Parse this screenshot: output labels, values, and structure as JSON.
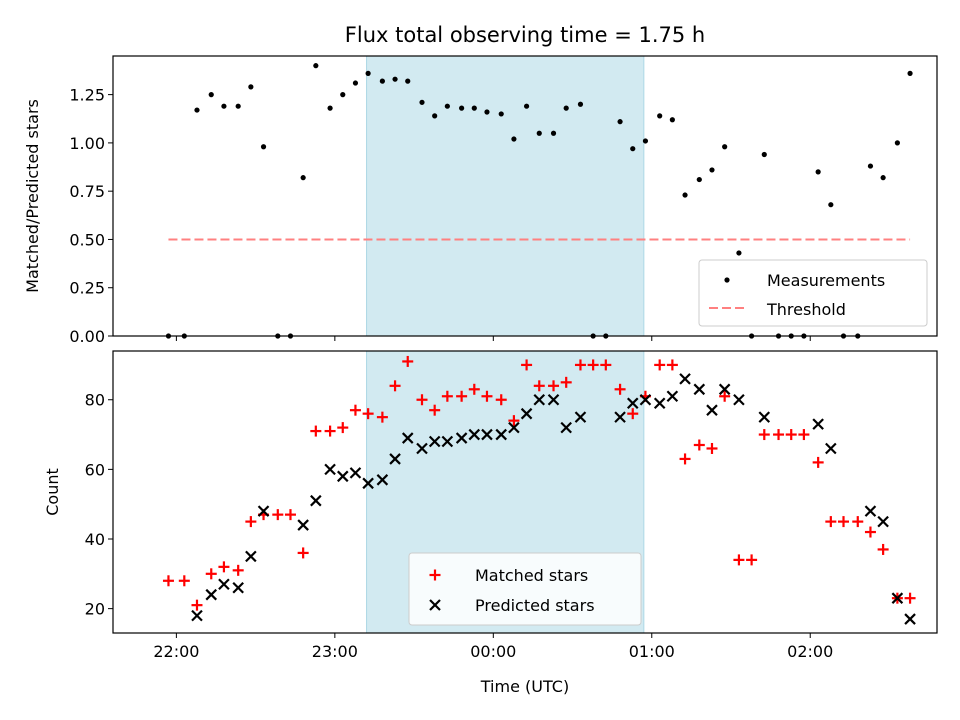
{
  "chart_data": [
    {
      "type": "scatter",
      "panel": "top",
      "title": "Flux total observing time = 1.75 h",
      "xlabel": "",
      "ylabel": "Matched/Predicted stars",
      "ylim": [
        0,
        1.45
      ],
      "yticks": [
        0,
        0.25,
        0.5,
        0.75,
        1.0,
        1.25
      ],
      "ytick_labels": [
        "0.00",
        "0.25",
        "0.50",
        "0.75",
        "1.00",
        "1.25"
      ],
      "shaded_span_hours": [
        23.2,
        24.95
      ],
      "legend_position": "lower right",
      "series": [
        {
          "name": "Measurements",
          "marker": "dot",
          "color": "#000000",
          "x": [
            21.95,
            22.05,
            22.13,
            22.22,
            22.3,
            22.39,
            22.47,
            22.55,
            22.64,
            22.72,
            22.8,
            22.88,
            22.97,
            23.05,
            23.13,
            23.21,
            23.3,
            23.38,
            23.46,
            23.55,
            23.63,
            23.71,
            23.8,
            23.88,
            23.96,
            24.05,
            24.13,
            24.21,
            24.29,
            24.38,
            24.46,
            24.55,
            24.63,
            24.71,
            24.8,
            24.88,
            24.96,
            25.05,
            25.13,
            25.21,
            25.3,
            25.38,
            25.46,
            25.55,
            25.63,
            25.71,
            25.8,
            25.88,
            25.96,
            26.05,
            26.13,
            26.21,
            26.3,
            26.38,
            26.46,
            26.55,
            26.63
          ],
          "y": [
            0,
            0,
            1.17,
            1.25,
            1.19,
            1.19,
            1.29,
            0.98,
            0,
            0,
            0.82,
            1.4,
            1.18,
            1.25,
            1.31,
            1.36,
            1.32,
            1.33,
            1.32,
            1.21,
            1.14,
            1.19,
            1.18,
            1.18,
            1.16,
            1.15,
            1.02,
            1.19,
            1.05,
            1.05,
            1.18,
            1.2,
            0,
            0,
            1.11,
            0.97,
            1.01,
            1.14,
            1.12,
            0.73,
            0.81,
            0.86,
            0.98,
            0.43,
            0,
            0.94,
            0,
            0,
            0,
            0.85,
            0.68,
            0,
            0,
            0.88,
            0.82,
            1.0,
            1.36
          ]
        },
        {
          "name": "Threshold",
          "type": "line",
          "style": "dashed",
          "color": "#ff8080",
          "x": [
            21.95,
            26.63
          ],
          "y": [
            0.5,
            0.5
          ]
        }
      ]
    },
    {
      "type": "scatter",
      "panel": "bottom",
      "title": "",
      "xlabel": "Time (UTC)",
      "ylabel": "Count",
      "ylim": [
        13,
        94
      ],
      "yticks": [
        20,
        40,
        60,
        80
      ],
      "ytick_labels": [
        "20",
        "40",
        "60",
        "80"
      ],
      "xticks_hours": [
        22,
        23,
        24,
        25,
        26
      ],
      "xtick_labels": [
        "22:00",
        "23:00",
        "00:00",
        "01:00",
        "02:00"
      ],
      "shaded_span_hours": [
        23.2,
        24.95
      ],
      "legend_position": "lower center",
      "series": [
        {
          "name": "Matched stars",
          "marker": "plus",
          "color": "#ff0000",
          "x": [
            21.95,
            22.05,
            22.13,
            22.22,
            22.3,
            22.39,
            22.47,
            22.55,
            22.64,
            22.72,
            22.8,
            22.88,
            22.97,
            23.05,
            23.13,
            23.21,
            23.3,
            23.38,
            23.46,
            23.55,
            23.63,
            23.71,
            23.8,
            23.88,
            23.96,
            24.05,
            24.13,
            24.21,
            24.29,
            24.38,
            24.46,
            24.55,
            24.63,
            24.71,
            24.8,
            24.88,
            24.96,
            25.05,
            25.13,
            25.21,
            25.3,
            25.38,
            25.46,
            25.55,
            25.63,
            25.71,
            25.8,
            25.88,
            25.96,
            26.05,
            26.13,
            26.21,
            26.3,
            26.38,
            26.46,
            26.55,
            26.63
          ],
          "y": [
            28,
            28,
            21,
            30,
            32,
            31,
            45,
            47,
            47,
            47,
            36,
            71,
            71,
            72,
            77,
            76,
            75,
            84,
            91,
            80,
            77,
            81,
            81,
            83,
            81,
            80,
            74,
            90,
            84,
            84,
            85,
            90,
            90,
            90,
            83,
            76,
            81,
            90,
            90,
            63,
            67,
            66,
            81,
            34,
            34,
            70,
            70,
            70,
            70,
            62,
            45,
            45,
            45,
            42,
            37,
            23,
            23
          ]
        },
        {
          "name": "Predicted stars",
          "marker": "x",
          "color": "#000000",
          "x": [
            22.13,
            22.22,
            22.3,
            22.39,
            22.47,
            22.55,
            22.8,
            22.88,
            22.97,
            23.05,
            23.13,
            23.21,
            23.3,
            23.38,
            23.46,
            23.55,
            23.63,
            23.71,
            23.8,
            23.88,
            23.96,
            24.05,
            24.13,
            24.21,
            24.29,
            24.38,
            24.46,
            24.55,
            24.8,
            24.88,
            24.96,
            25.05,
            25.13,
            25.21,
            25.3,
            25.38,
            25.46,
            25.55,
            25.71,
            26.05,
            26.13,
            26.38,
            26.46,
            26.55,
            26.63
          ],
          "y": [
            18,
            24,
            27,
            26,
            35,
            48,
            44,
            51,
            60,
            58,
            59,
            56,
            57,
            63,
            69,
            66,
            68,
            68,
            69,
            70,
            70,
            70,
            72,
            76,
            80,
            80,
            72,
            75,
            75,
            79,
            80,
            79,
            81,
            86,
            83,
            77,
            83,
            80,
            75,
            73,
            66,
            48,
            45,
            23,
            17
          ]
        }
      ]
    }
  ]
}
